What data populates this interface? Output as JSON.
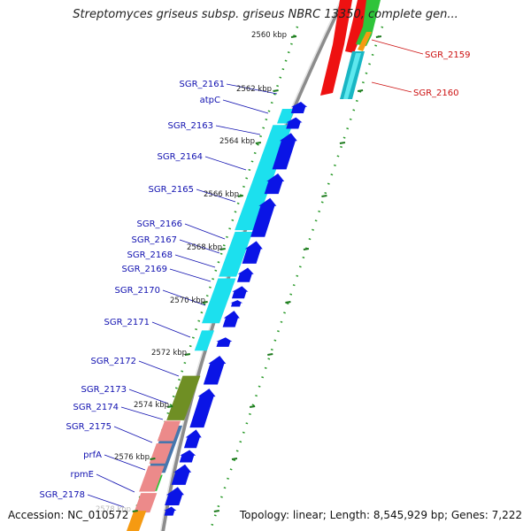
{
  "title": "Streptomyces griseus subsp. griseus NBRC 13350, complete gen...",
  "accession": "Accession: NC_010572",
  "summary": "Topology: linear; Length: 8,545,929 bp; Genes: 7,222",
  "colors": {
    "forward_gene": "#0a14e6",
    "cds_cyan": "#1ce0ee",
    "cds_olive": "#6f8f24",
    "cds_steel": "#4676ad",
    "cds_green": "#2fc43a",
    "cds_salmon": "#ec8a8a",
    "cds_orange": "#f59a12",
    "cds_red": "#ee1111",
    "cds_teal": "#19b6c4",
    "backbone": "#8c8c8c",
    "tick_dots": "#2a9a2a",
    "label_blue": "#1010b0",
    "label_red": "#cc1010"
  },
  "kbp_ticks": [
    {
      "label": "2560 kbp"
    },
    {
      "label": "2562 kbp"
    },
    {
      "label": "2564 kbp"
    },
    {
      "label": "2566 kbp"
    },
    {
      "label": "2568 kbp"
    },
    {
      "label": "2570 kbp"
    },
    {
      "label": "2572 kbp"
    },
    {
      "label": "2574 kbp"
    },
    {
      "label": "2576 kbp"
    },
    {
      "label": "2578 kbp"
    }
  ],
  "genes_left": [
    {
      "label": "SGR_2161"
    },
    {
      "label": "atpC"
    },
    {
      "label": "SGR_2163"
    },
    {
      "label": "SGR_2164"
    },
    {
      "label": "SGR_2165"
    },
    {
      "label": "SGR_2166"
    },
    {
      "label": "SGR_2167"
    },
    {
      "label": "SGR_2168"
    },
    {
      "label": "SGR_2169"
    },
    {
      "label": "SGR_2170"
    },
    {
      "label": "SGR_2171"
    },
    {
      "label": "SGR_2172"
    },
    {
      "label": "SGR_2173"
    },
    {
      "label": "SGR_2174"
    },
    {
      "label": "SGR_2175"
    },
    {
      "label": "prfA"
    },
    {
      "label": "rpmE"
    },
    {
      "label": "SGR_2178"
    }
  ],
  "genes_right": [
    {
      "label": "SGR_2159"
    },
    {
      "label": "SGR_2160"
    }
  ]
}
